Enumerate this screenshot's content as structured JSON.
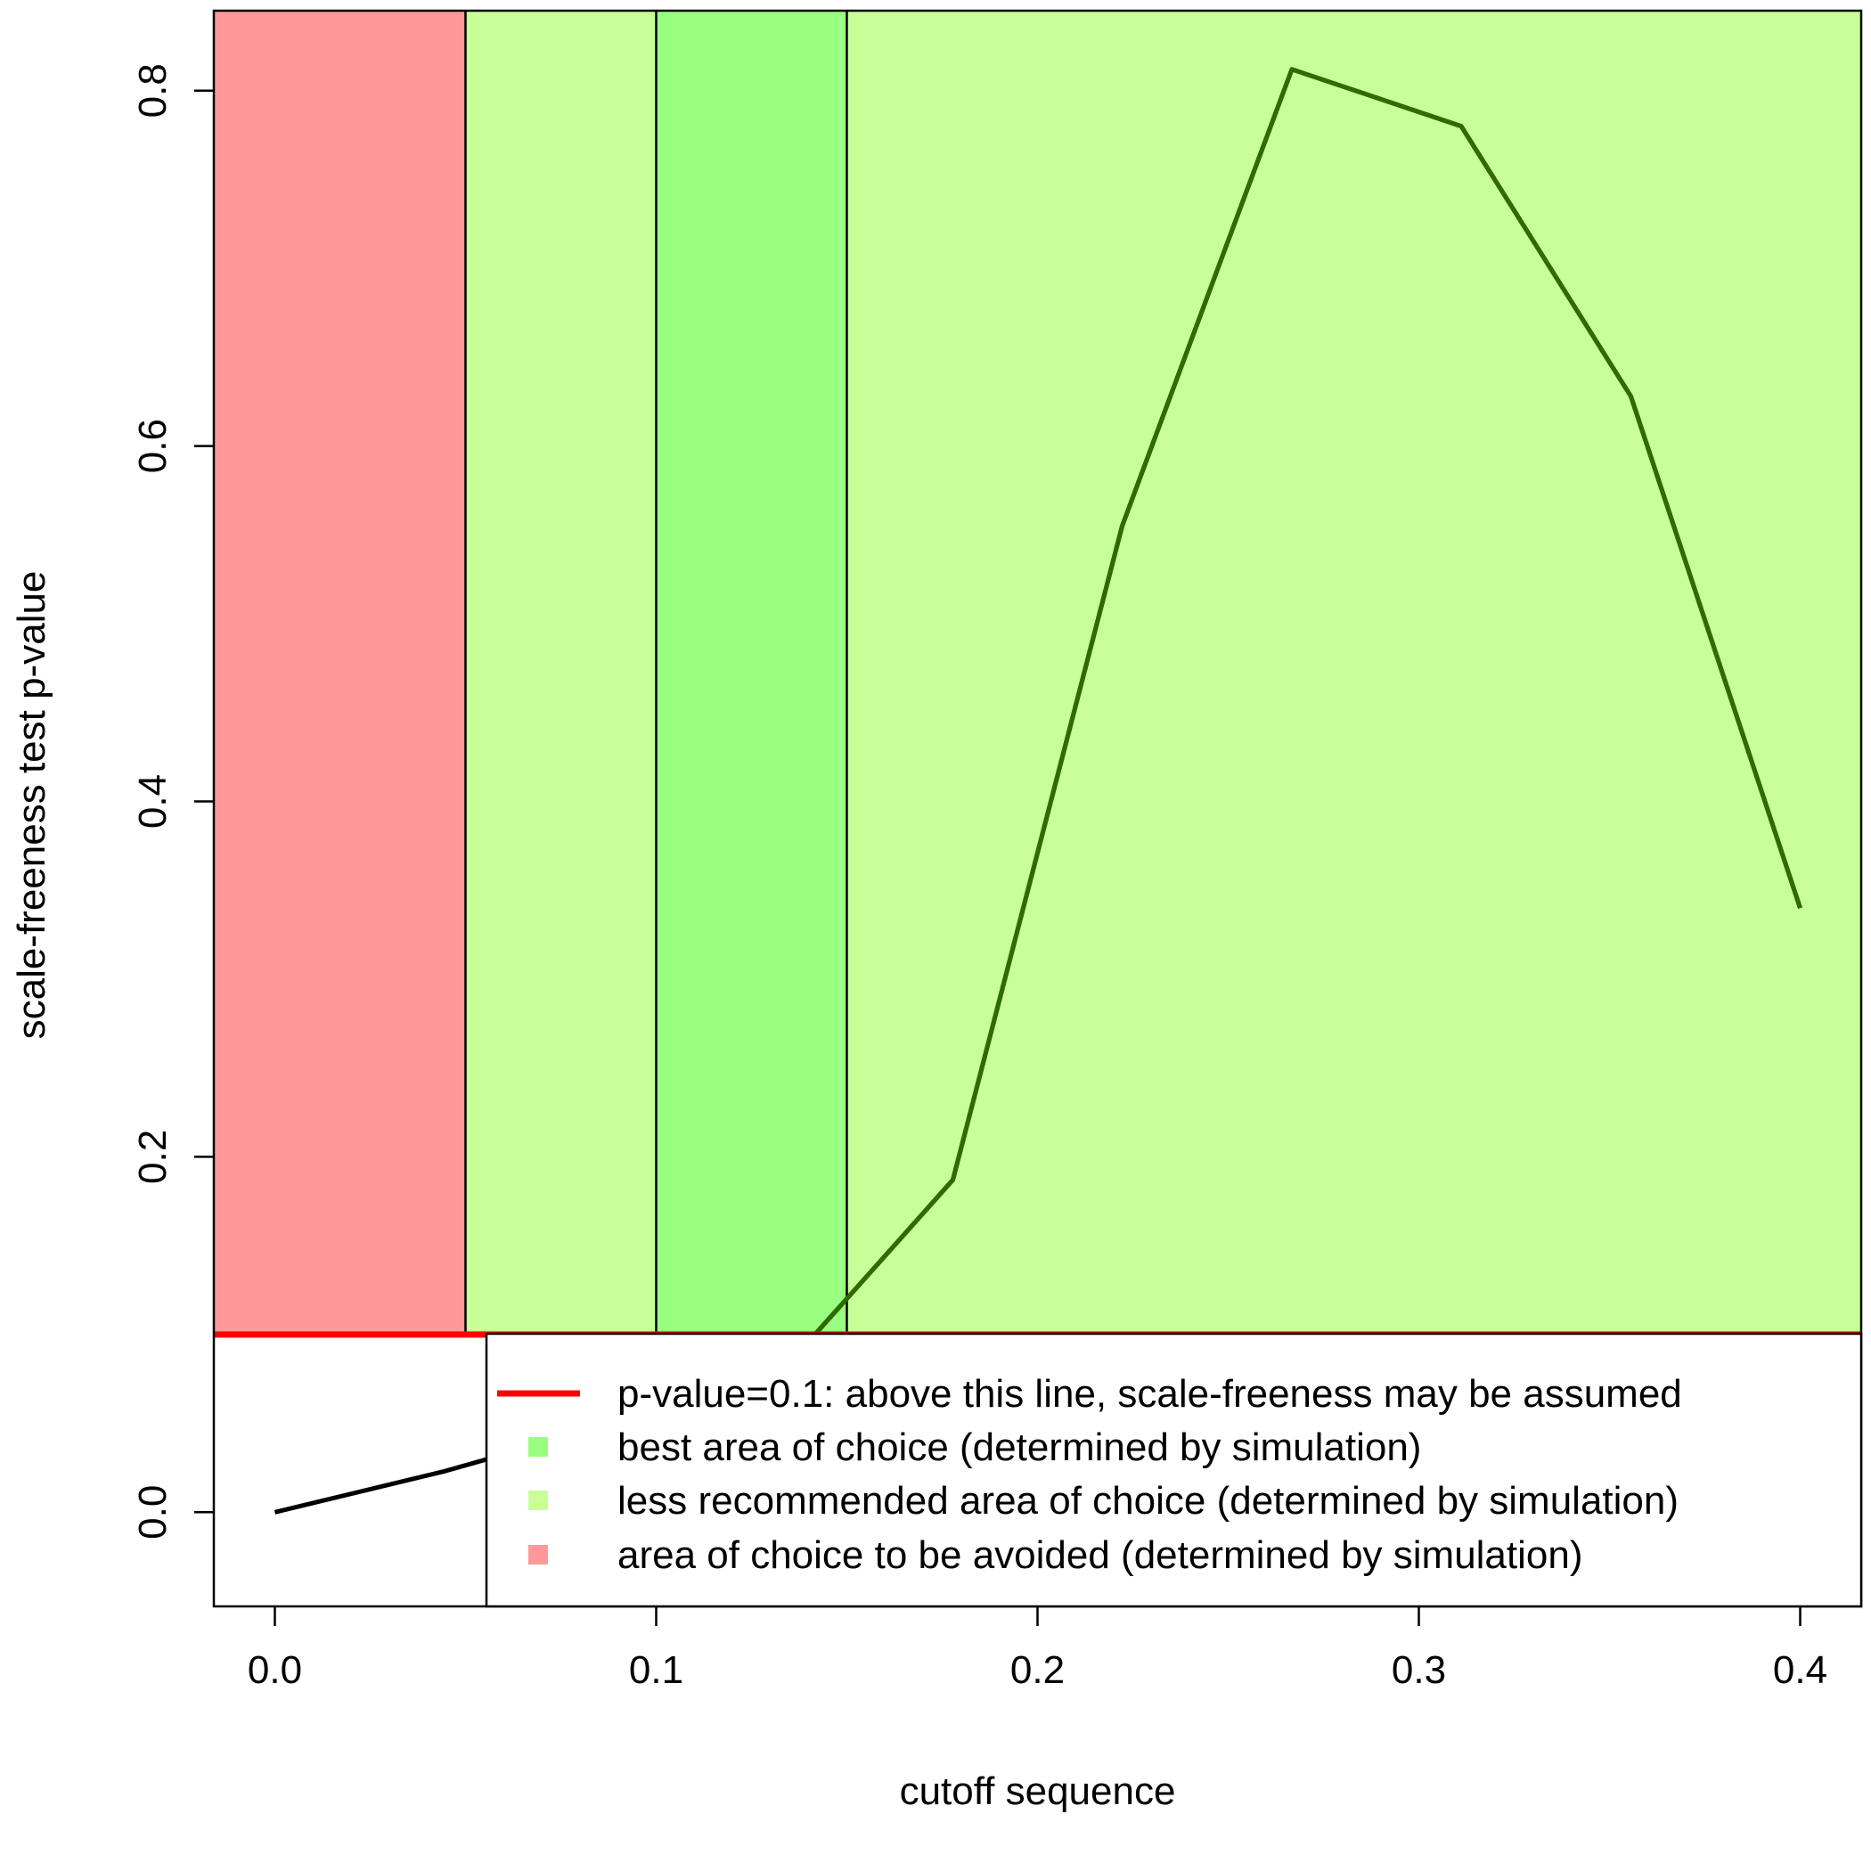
{
  "chart_data": {
    "type": "line",
    "title": "",
    "xlabel": "cutoff sequence",
    "ylabel": "scale-freeness test p-value",
    "xlim": [
      -0.016,
      0.416
    ],
    "ylim": [
      -0.053,
      0.845
    ],
    "x_ticks": [
      "0.0",
      "0.1",
      "0.2",
      "0.3",
      "0.4"
    ],
    "y_ticks": [
      "0.0",
      "0.2",
      "0.4",
      "0.6",
      "0.8"
    ],
    "grid": false,
    "legend_position": "bottom-right",
    "series": [
      {
        "color": "#000000",
        "x": [
          0.0,
          0.0444,
          0.0889,
          0.1333,
          0.1778,
          0.2222,
          0.2667,
          0.3111,
          0.3556,
          0.4
        ],
        "y": [
          0.0,
          0.023,
          0.05,
          0.08,
          0.187,
          0.555,
          0.812,
          0.78,
          0.628,
          0.34
        ]
      }
    ],
    "regions": [
      {
        "x0": -0.016,
        "x1": 0.05,
        "color": "#FF9999"
      },
      {
        "x0": 0.05,
        "x1": 0.1,
        "color": "#C8FF99"
      },
      {
        "x0": 0.1,
        "x1": 0.15,
        "color": "#99FF80"
      },
      {
        "x0": 0.15,
        "x1": 0.416,
        "color": "#C8FF99"
      }
    ],
    "region_boundaries": [
      0.05,
      0.1,
      0.15
    ],
    "threshold": {
      "y": 0.1,
      "color": "#FF0000"
    },
    "line_color_above_threshold": "#2E6B00",
    "legend": [
      {
        "type": "line",
        "color": "#FF0000",
        "label": "p-value=0.1:  above this line, scale-freeness may be assumed"
      },
      {
        "type": "square",
        "color": "#99FF80",
        "label": "best area of choice (determined by simulation)"
      },
      {
        "type": "square",
        "color": "#C8FF99",
        "label": "less recommended area of choice (determined by simulation)"
      },
      {
        "type": "square",
        "color": "#FF9999",
        "label": "area of choice to be avoided (determined by simulation)"
      }
    ]
  }
}
